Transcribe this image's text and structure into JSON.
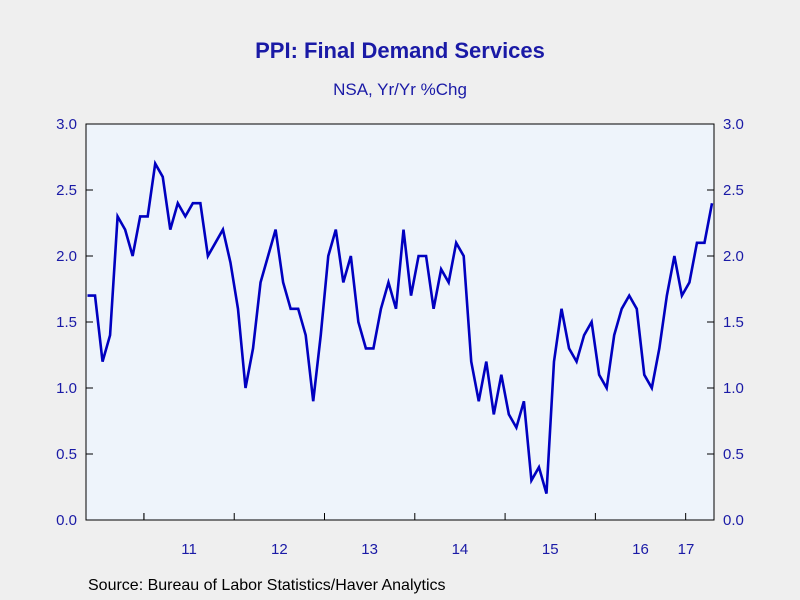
{
  "chart_data": {
    "type": "line",
    "title": "PPI: Final Demand Services",
    "subtitle": "NSA, Yr/Yr %Chg",
    "source": "Source:  Bureau of Labor Statistics/Haver Analytics",
    "ylim": [
      0.0,
      3.0
    ],
    "y_ticks": [
      "0.0",
      "0.5",
      "1.0",
      "1.5",
      "2.0",
      "2.5",
      "3.0"
    ],
    "x_tick_labels": [
      "11",
      "12",
      "13",
      "14",
      "15",
      "16",
      "17"
    ],
    "grid": false,
    "line_color": "#0000c0",
    "plot_background": "#eef4fb",
    "series": [
      {
        "start": "2010-05",
        "frequency": "monthly",
        "values": [
          1.7,
          1.7,
          1.2,
          1.4,
          2.3,
          2.2,
          2.0,
          2.3,
          2.3,
          2.7,
          2.6,
          2.2,
          2.4,
          2.3,
          2.4,
          2.4,
          2.0,
          2.1,
          2.2,
          1.95,
          1.6,
          1.0,
          1.3,
          1.8,
          2.0,
          2.2,
          1.8,
          1.6,
          1.6,
          1.4,
          0.9,
          1.4,
          2.0,
          2.2,
          1.8,
          2.0,
          1.5,
          1.3,
          1.3,
          1.6,
          1.8,
          1.6,
          2.2,
          1.7,
          2.0,
          2.0,
          1.6,
          1.9,
          1.8,
          2.1,
          2.0,
          1.2,
          0.9,
          1.2,
          0.8,
          1.1,
          0.8,
          0.7,
          0.9,
          0.3,
          0.4,
          0.2,
          1.2,
          1.6,
          1.3,
          1.2,
          1.4,
          1.5,
          1.1,
          1.0,
          1.4,
          1.6,
          1.7,
          1.6,
          1.1,
          1.0,
          1.3,
          1.7,
          2.0,
          1.7,
          1.8,
          2.1,
          2.1,
          2.4
        ]
      }
    ]
  }
}
